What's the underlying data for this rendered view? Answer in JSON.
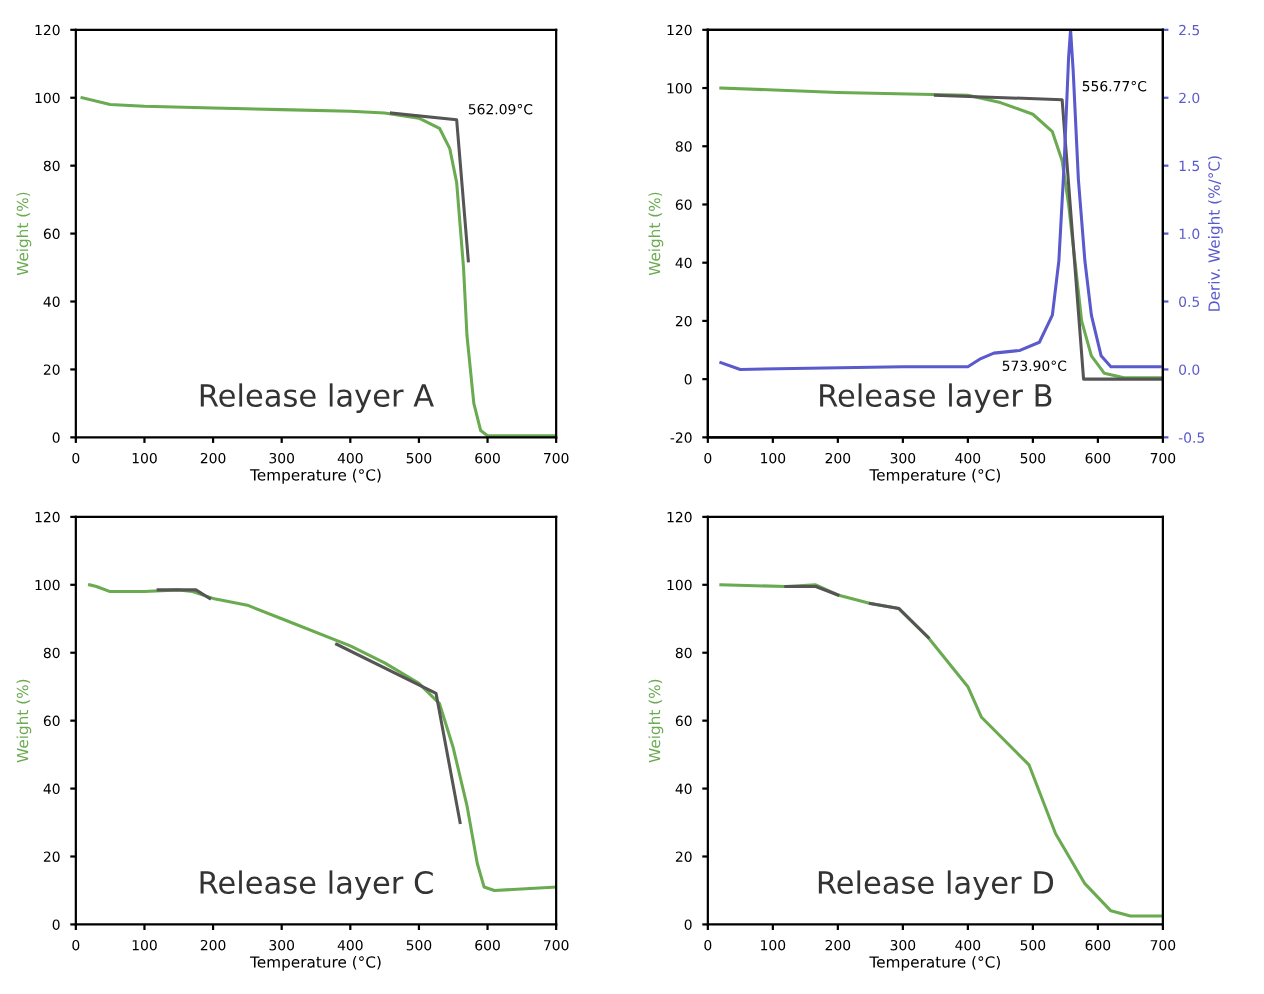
{
  "chart_data": [
    {
      "type": "line",
      "title": "Release layer A",
      "xlabel": "Temperature (°C)",
      "ylabel": "Weight (%)",
      "xlim": [
        0,
        700
      ],
      "ylim": [
        0,
        120
      ],
      "xticks": [
        0,
        100,
        200,
        300,
        400,
        500,
        600,
        700
      ],
      "yticks": [
        0,
        20,
        40,
        60,
        80,
        100,
        120
      ],
      "grid": false,
      "legend": false,
      "series": [
        {
          "color": "#6aaa50",
          "x": [
            9,
            50,
            100,
            200,
            300,
            400,
            450,
            500,
            530,
            545,
            555,
            565,
            570,
            580,
            590,
            600,
            700
          ],
          "values": [
            100,
            98,
            97.5,
            97,
            96.5,
            96,
            95.5,
            94,
            91,
            85,
            75,
            50,
            30,
            10,
            2,
            0.5,
            0.5
          ]
        },
        {
          "color": "#555555",
          "x": [
            460,
            555,
            572
          ],
          "values": [
            95.5,
            93.5,
            52
          ]
        }
      ],
      "annotations": [
        {
          "text": "562.09°C",
          "x": 555,
          "y": 93.5
        }
      ]
    },
    {
      "type": "line",
      "title": "Release layer B",
      "xlabel": "Temperature (°C)",
      "ylabel": "Weight (%)",
      "y2label": "Deriv. Weight (%/°C)",
      "xlim": [
        0,
        700
      ],
      "ylim": [
        -20,
        120
      ],
      "xticks": [
        0,
        100,
        200,
        300,
        400,
        500,
        600,
        700
      ],
      "yticks": [
        -20,
        0,
        20,
        40,
        60,
        80,
        100,
        120
      ],
      "y2lim": [
        -0.5,
        2.5
      ],
      "y2ticks": [
        -0.5,
        {
          "value": 0,
          "label": "0.0"
        },
        0.5,
        {
          "value": 1,
          "label": "1.0"
        },
        1.5,
        {
          "value": 2,
          "label": "2.0"
        },
        2.5
      ],
      "grid": false,
      "legend": false,
      "series": [
        {
          "color": "#6aaa50",
          "x": [
            20,
            200,
            400,
            450,
            500,
            530,
            545,
            555,
            565,
            575,
            590,
            610,
            640,
            700
          ],
          "values": [
            100,
            98.5,
            97.5,
            95,
            91,
            85,
            75,
            60,
            40,
            20,
            8,
            2,
            0.5,
            0.5
          ]
        },
        {
          "color": "#5a5acc",
          "axis": "y2",
          "x": [
            20,
            50,
            300,
            400,
            420,
            440,
            480,
            510,
            530,
            540,
            548,
            555,
            558,
            562,
            570,
            580,
            590,
            605,
            620,
            700
          ],
          "values": [
            0.05,
            0.0,
            0.02,
            0.02,
            0.08,
            0.12,
            0.14,
            0.2,
            0.4,
            0.8,
            1.5,
            2.3,
            2.5,
            2.2,
            1.4,
            0.8,
            0.4,
            0.1,
            0.02,
            0.02
          ]
        },
        {
          "color": "#555555",
          "x": [
            350,
            545,
            578,
            700
          ],
          "values": [
            97.5,
            96,
            0,
            0
          ]
        }
      ],
      "annotations": [
        {
          "text": "556.77°C",
          "x": 558,
          "y": 97
        },
        {
          "text": "573.90°C",
          "x": 578,
          "y": 0
        }
      ]
    },
    {
      "type": "line",
      "title": "Release layer C",
      "xlabel": "Temperature (°C)",
      "ylabel": "Weight (%)",
      "xlim": [
        0,
        700
      ],
      "ylim": [
        0,
        120
      ],
      "xticks": [
        0,
        100,
        200,
        300,
        400,
        500,
        600,
        700
      ],
      "yticks": [
        0,
        20,
        40,
        60,
        80,
        100,
        120
      ],
      "grid": false,
      "legend": false,
      "series": [
        {
          "color": "#6aaa50",
          "x": [
            20,
            30,
            50,
            100,
            150,
            170,
            200,
            250,
            300,
            400,
            450,
            500,
            530,
            550,
            570,
            585,
            595,
            610,
            700
          ],
          "values": [
            100,
            99.5,
            98,
            98,
            98.5,
            98,
            96,
            94,
            90,
            82,
            77,
            71,
            65,
            52,
            35,
            18,
            11,
            10,
            11
          ]
        },
        {
          "color": "#555555",
          "x": [
            120,
            175,
            195
          ],
          "values": [
            98.5,
            98.5,
            96
          ]
        },
        {
          "color": "#555555",
          "x": [
            380,
            525,
            560
          ],
          "values": [
            82.5,
            68,
            30
          ]
        }
      ]
    },
    {
      "type": "line",
      "title": "Release layer D",
      "xlabel": "Temperature (°C)",
      "ylabel": "Weight (%)",
      "xlim": [
        0,
        700
      ],
      "ylim": [
        0,
        120
      ],
      "xticks": [
        0,
        100,
        200,
        300,
        400,
        500,
        600,
        700
      ],
      "yticks": [
        0,
        20,
        40,
        60,
        80,
        100,
        120
      ],
      "grid": false,
      "legend": false,
      "series": [
        {
          "color": "#6aaa50",
          "x": [
            20,
            120,
            166,
            200,
            250,
            294,
            339,
            400,
            421,
            494,
            535,
            580,
            620,
            650,
            700
          ],
          "values": [
            100,
            99.5,
            100,
            97,
            94.5,
            93,
            84.5,
            70,
            61,
            47,
            26.7,
            12,
            4,
            2.5,
            2.5
          ]
        },
        {
          "color": "#555555",
          "x": [
            120,
            166,
            200
          ],
          "values": [
            99.5,
            99.5,
            97
          ]
        },
        {
          "color": "#555555",
          "x": [
            250,
            294,
            339
          ],
          "values": [
            94.5,
            93,
            84.5
          ]
        }
      ]
    }
  ]
}
